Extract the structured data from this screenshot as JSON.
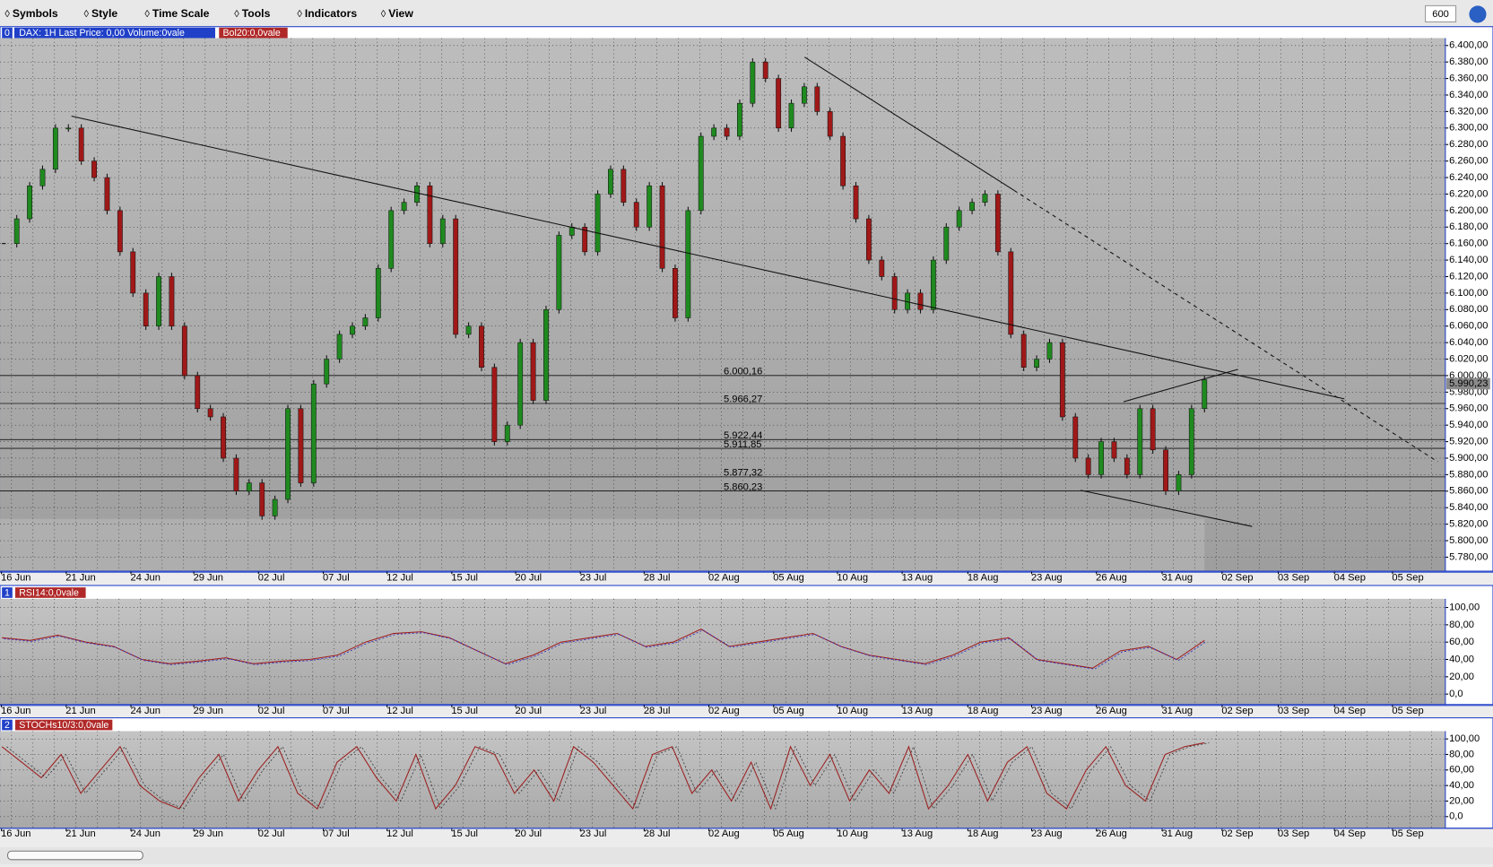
{
  "menu": [
    "Symbols",
    "Style",
    "Time Scale",
    "Tools",
    "Indicators",
    "View"
  ],
  "zoom": "600",
  "dates": [
    "16 Jun",
    "21 Jun",
    "24 Jun",
    "29 Jun",
    "02 Jul",
    "07 Jul",
    "12 Jul",
    "15 Jul",
    "20 Jul",
    "23 Jul",
    "28 Jul",
    "02 Aug",
    "05 Aug",
    "10 Aug",
    "13 Aug",
    "18 Aug",
    "23 Aug",
    "26 Aug",
    "31 Aug",
    "02 Sep",
    "03 Sep",
    "04 Sep",
    "05 Sep"
  ],
  "price_panel": {
    "index": "0",
    "header": "DAX: 1H Last Price: 0,00 Volume:0vale",
    "indicator": "Bol20:0,0vale",
    "ylim": [
      5763,
      6409
    ],
    "yticks": [
      {
        "value": 6400,
        "label": "6.400,00"
      },
      {
        "value": 6380,
        "label": "6.380,00"
      },
      {
        "value": 6360,
        "label": "6.360,00"
      },
      {
        "value": 6340,
        "label": "6.340,00"
      },
      {
        "value": 6320,
        "label": "6.320,00"
      },
      {
        "value": 6300,
        "label": "6.300,00"
      },
      {
        "value": 6280,
        "label": "6.280,00"
      },
      {
        "value": 6260,
        "label": "6.260,00"
      },
      {
        "value": 6240,
        "label": "6.240,00"
      },
      {
        "value": 6220,
        "label": "6.220,00"
      },
      {
        "value": 6200,
        "label": "6.200,00"
      },
      {
        "value": 6180,
        "label": "6.180,00"
      },
      {
        "value": 6160,
        "label": "6.160,00"
      },
      {
        "value": 6140,
        "label": "6.140,00"
      },
      {
        "value": 6120,
        "label": "6.120,00"
      },
      {
        "value": 6100,
        "label": "6.100,00"
      },
      {
        "value": 6080,
        "label": "6.080,00"
      },
      {
        "value": 6060,
        "label": "6.060,00"
      },
      {
        "value": 6040,
        "label": "6.040,00"
      },
      {
        "value": 6020,
        "label": "6.020,00"
      },
      {
        "value": 6000,
        "label": "6.000,00"
      },
      {
        "value": 5980,
        "label": "5.980,00"
      },
      {
        "value": 5960,
        "label": "5.960,00"
      },
      {
        "value": 5940,
        "label": "5.940,00"
      },
      {
        "value": 5920,
        "label": "5.920,00"
      },
      {
        "value": 5900,
        "label": "5.900,00"
      },
      {
        "value": 5880,
        "label": "5.880,00"
      },
      {
        "value": 5860,
        "label": "5.860,00"
      },
      {
        "value": 5840,
        "label": "5.840,00"
      },
      {
        "value": 5820,
        "label": "5.820,00"
      },
      {
        "value": 5800,
        "label": "5.800,00"
      },
      {
        "value": 5780,
        "label": "5.780,00"
      }
    ],
    "levels": [
      {
        "value": 6000.16,
        "label": "6.000,16"
      },
      {
        "value": 5966.27,
        "label": "5.966,27"
      },
      {
        "value": 5922.44,
        "label": "5.922,44"
      },
      {
        "value": 5911.85,
        "label": "5.911,85"
      },
      {
        "value": 5877.32,
        "label": "5.877,32"
      },
      {
        "value": 5860.23,
        "label": "5.860,23"
      }
    ],
    "last_price": {
      "value": 5990.23,
      "label": "5.990,23"
    },
    "values": [
      6160,
      6190,
      6230,
      6250,
      6300,
      6300,
      6260,
      6240,
      6200,
      6150,
      6100,
      6060,
      6120,
      6060,
      6000,
      5960,
      5950,
      5900,
      5860,
      5870,
      5830,
      5850,
      5960,
      5870,
      5990,
      6020,
      6050,
      6060,
      6070,
      6130,
      6200,
      6210,
      6230,
      6160,
      6190,
      6050,
      6060,
      6010,
      5920,
      5940,
      6040,
      5970,
      6080,
      6170,
      6180,
      6150,
      6220,
      6250,
      6210,
      6180,
      6230,
      6130,
      6070,
      6200,
      6290,
      6300,
      6290,
      6330,
      6380,
      6360,
      6300,
      6330,
      6350,
      6320,
      6290,
      6230,
      6190,
      6140,
      6120,
      6080,
      6100,
      6080,
      6140,
      6180,
      6200,
      6210,
      6220,
      6150,
      6050,
      6010,
      6020,
      6040,
      5950,
      5900,
      5880,
      5920,
      5900,
      5880,
      5960,
      5910,
      5860,
      5880,
      5960,
      5995
    ]
  },
  "rsi_panel": {
    "index": "1",
    "header": "RSI14:0,0vale",
    "ylim": [
      -12,
      110
    ],
    "yticks": [
      {
        "value": 100,
        "label": "100,00"
      },
      {
        "value": 80,
        "label": "80,00"
      },
      {
        "value": 60,
        "label": "60,00"
      },
      {
        "value": 40,
        "label": "40,00"
      },
      {
        "value": 20,
        "label": "20,00"
      },
      {
        "value": 0,
        "label": "0,0"
      }
    ],
    "values": [
      65,
      62,
      68,
      60,
      55,
      40,
      35,
      38,
      42,
      35,
      38,
      40,
      45,
      60,
      70,
      72,
      65,
      50,
      35,
      45,
      60,
      65,
      70,
      55,
      60,
      75,
      55,
      60,
      65,
      70,
      55,
      45,
      40,
      35,
      45,
      60,
      65,
      40,
      35,
      30,
      50,
      55,
      40,
      62
    ]
  },
  "stoch_panel": {
    "index": "2",
    "header": "STOCHs10/3:0,0vale",
    "ylim": [
      -15,
      110
    ],
    "yticks": [
      {
        "value": 100,
        "label": "100,00"
      },
      {
        "value": 80,
        "label": "80,00"
      },
      {
        "value": 60,
        "label": "60,00"
      },
      {
        "value": 40,
        "label": "40,00"
      },
      {
        "value": 20,
        "label": "20,00"
      },
      {
        "value": 0,
        "label": "0,0"
      }
    ],
    "values": [
      90,
      70,
      50,
      80,
      30,
      60,
      90,
      40,
      20,
      10,
      50,
      80,
      20,
      60,
      90,
      30,
      10,
      70,
      90,
      50,
      20,
      80,
      10,
      40,
      90,
      80,
      30,
      60,
      20,
      90,
      70,
      40,
      10,
      80,
      90,
      30,
      60,
      20,
      70,
      10,
      90,
      40,
      80,
      20,
      60,
      30,
      90,
      10,
      40,
      80,
      20,
      70,
      90,
      30,
      10,
      60,
      90,
      40,
      20,
      80,
      90,
      95
    ]
  }
}
